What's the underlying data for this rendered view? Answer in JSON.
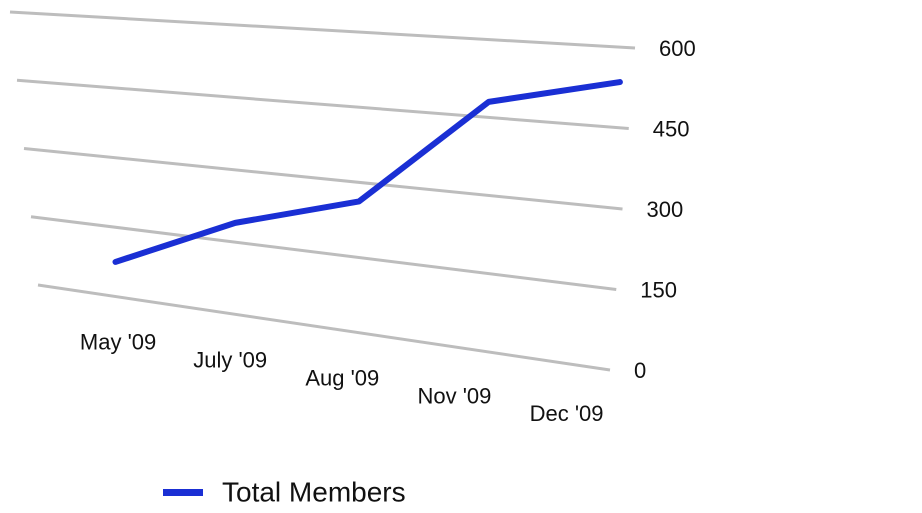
{
  "chart_data": {
    "type": "line",
    "categories": [
      "May '09",
      "July '09",
      "Aug '09",
      "Nov '09",
      "Dec '09"
    ],
    "series": [
      {
        "name": "Total Members",
        "color": "#1a2fd4",
        "values": [
          75,
          190,
          262,
          480,
          535
        ]
      }
    ],
    "ylim": [
      0,
      600
    ],
    "yticks": [
      0,
      150,
      300,
      450,
      600
    ],
    "grid": true,
    "legend": "bottom"
  }
}
